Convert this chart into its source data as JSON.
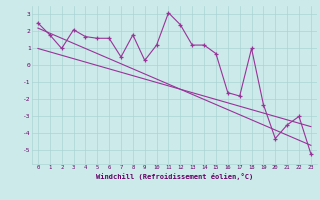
{
  "title": "",
  "xlabel": "Windchill (Refroidissement éolien,°C)",
  "x_data": [
    0,
    1,
    2,
    3,
    4,
    5,
    6,
    7,
    8,
    9,
    10,
    11,
    12,
    13,
    14,
    15,
    16,
    17,
    18,
    19,
    20,
    21,
    22,
    23
  ],
  "y_data": [
    2.5,
    1.8,
    1.0,
    2.1,
    1.7,
    1.6,
    1.6,
    0.5,
    1.8,
    0.3,
    1.2,
    3.1,
    2.4,
    1.2,
    1.2,
    0.7,
    -1.6,
    -1.8,
    1.0,
    -2.3,
    -4.3,
    -3.5,
    -3.0,
    -5.2
  ],
  "trend1": [
    2.2,
    1.9,
    1.6,
    1.3,
    1.0,
    0.7,
    0.4,
    0.1,
    -0.2,
    -0.5,
    -0.8,
    -1.1,
    -1.4,
    -1.7,
    -2.0,
    -2.3,
    -2.6,
    -2.9,
    -3.2,
    -3.5,
    -3.8,
    -4.1,
    -4.4,
    -4.7
  ],
  "trend2": [
    1.0,
    0.8,
    0.6,
    0.4,
    0.2,
    0.0,
    -0.2,
    -0.4,
    -0.6,
    -0.8,
    -1.0,
    -1.2,
    -1.4,
    -1.6,
    -1.8,
    -2.0,
    -2.2,
    -2.4,
    -2.6,
    -2.8,
    -3.0,
    -3.2,
    -3.4,
    -3.6
  ],
  "line_color": "#993399",
  "bg_color": "#cceae9",
  "grid_color": "#aad4d4",
  "text_color": "#660066",
  "ylim": [
    -5.8,
    3.5
  ],
  "yticks": [
    -5,
    -4,
    -3,
    -2,
    -1,
    0,
    1,
    2,
    3
  ],
  "xlim": [
    -0.5,
    23.5
  ],
  "xticks": [
    0,
    1,
    2,
    3,
    4,
    5,
    6,
    7,
    8,
    9,
    10,
    11,
    12,
    13,
    14,
    15,
    16,
    17,
    18,
    19,
    20,
    21,
    22,
    23
  ]
}
